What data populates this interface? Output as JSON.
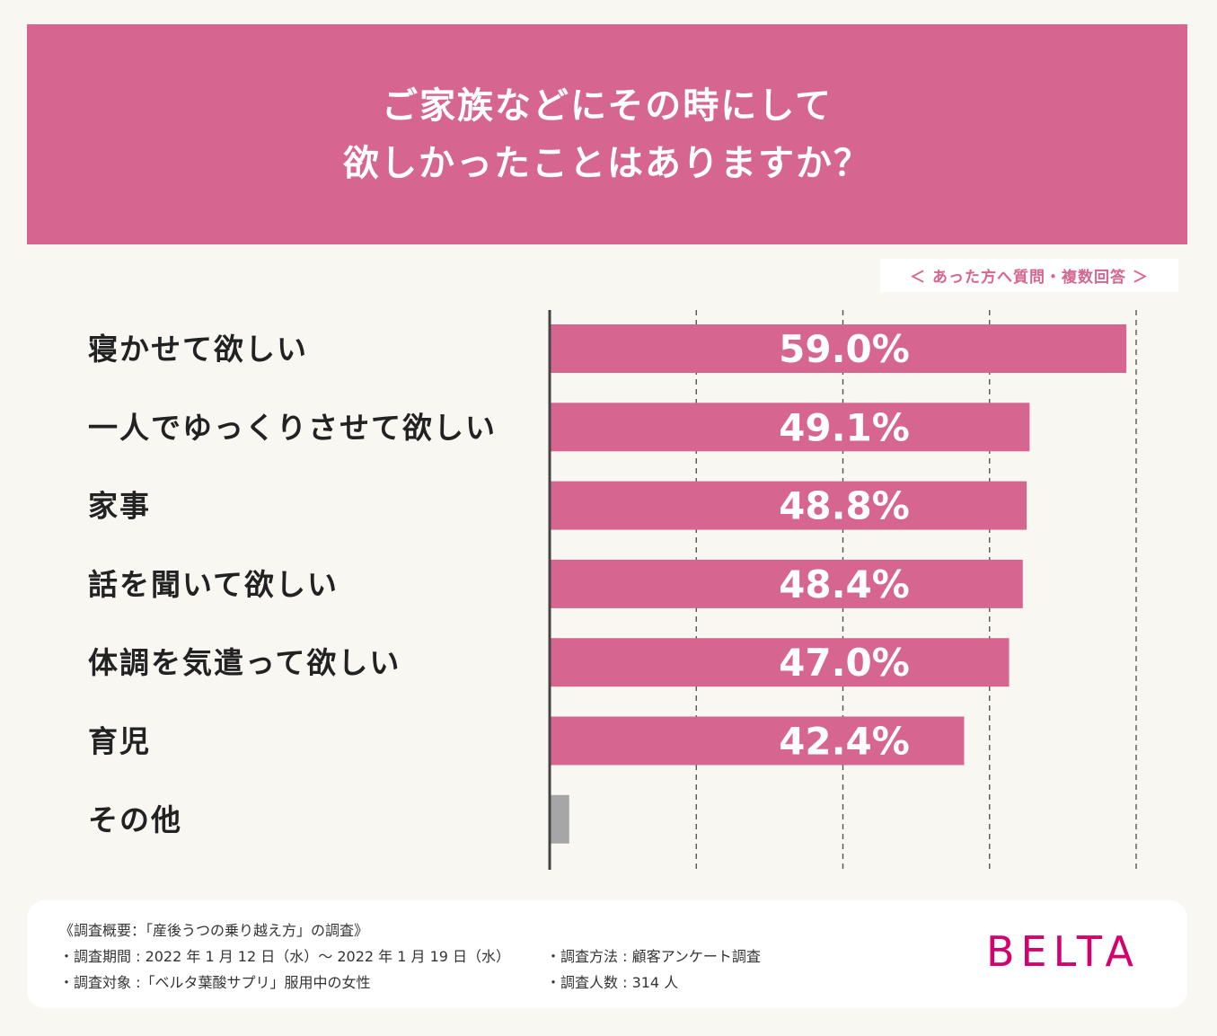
{
  "header": {
    "line1": "ご家族などにその時にして",
    "line2": "欲しかったことはありますか？"
  },
  "note": "＜ あった方へ質問・複数回答 ＞",
  "chart_data": {
    "type": "bar",
    "orientation": "horizontal",
    "categories": [
      "寝かせて欲しい",
      "一人でゆっくりさせて欲しい",
      "家事",
      "話を聞いて欲しい",
      "体調を気遣って欲しい",
      "育児",
      "その他"
    ],
    "values": [
      59.0,
      49.1,
      48.8,
      48.4,
      47.0,
      42.4,
      2.0
    ],
    "value_labels": [
      "59.0%",
      "49.1%",
      "48.8%",
      "48.4%",
      "47.0%",
      "42.4%",
      ""
    ],
    "xlim": [
      0,
      60
    ],
    "grid": "vertical-dashed",
    "colors": {
      "bar": "#d66590",
      "other_bar": "#a6a6a6",
      "axis": "#444444"
    }
  },
  "footer": {
    "title": "《調査概要：「産後うつの乗り越え方」の調査》",
    "period": "・調査期間 : 2022 年 1 月 12 日（水）〜 2022 年 1 月 19 日（水）",
    "target": "・調査対象 :「ベルタ葉酸サプリ」服用中の女性",
    "method": "・調査方法 : 顧客アンケート調査",
    "count": "・調査人数 : 314 人",
    "brand": "BELTA"
  }
}
